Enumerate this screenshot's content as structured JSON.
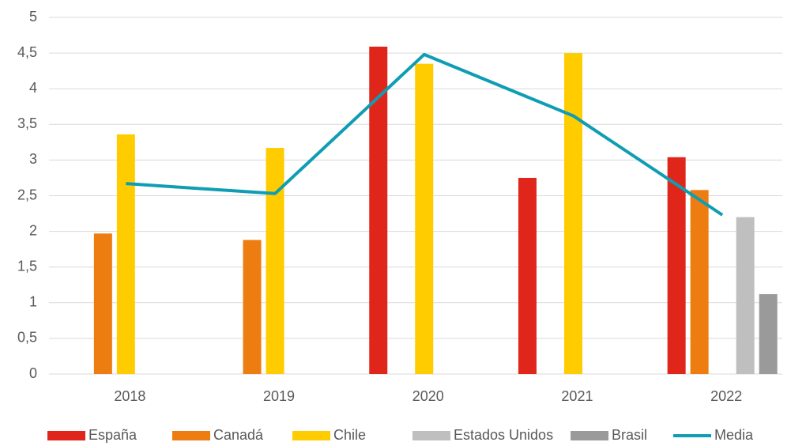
{
  "chart_data": {
    "type": "bar",
    "categories": [
      "2018",
      "2019",
      "2020",
      "2021",
      "2022"
    ],
    "series": [
      {
        "name": "España",
        "color": "#e0261b",
        "values": [
          null,
          null,
          4.59,
          2.75,
          3.04
        ]
      },
      {
        "name": "Canadá",
        "color": "#ee7d11",
        "values": [
          1.97,
          1.88,
          null,
          null,
          2.58
        ]
      },
      {
        "name": "Chile",
        "color": "#ffcc00",
        "values": [
          3.36,
          3.17,
          4.35,
          4.5,
          null
        ]
      },
      {
        "name": "Estados Unidos",
        "color": "#c0bfbf",
        "values": [
          null,
          null,
          null,
          null,
          2.2
        ]
      },
      {
        "name": "Brasil",
        "color": "#9b9a9a",
        "values": [
          null,
          null,
          null,
          null,
          1.12
        ]
      },
      {
        "name": "Media",
        "color": "#0f9db3",
        "type": "line",
        "values": [
          2.67,
          2.53,
          4.48,
          3.62,
          2.23
        ]
      }
    ],
    "ylim": [
      0,
      5
    ],
    "yticks": [
      0,
      {
        "value": 0.5,
        "label": "0,5"
      },
      1,
      {
        "value": 1.5,
        "label": "1,5"
      },
      2,
      {
        "value": 2.5,
        "label": "2,5"
      },
      3,
      {
        "value": 3.5,
        "label": "3,5"
      },
      4,
      {
        "value": 4.5,
        "label": "4,5"
      },
      5
    ],
    "grid": true,
    "legend": "bottom"
  }
}
